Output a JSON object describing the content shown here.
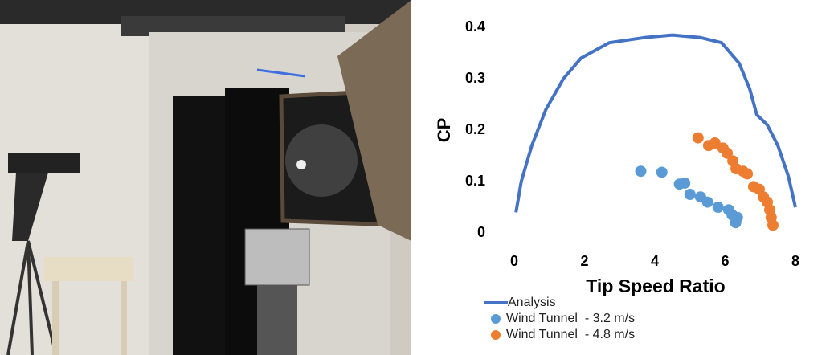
{
  "chart_data": {
    "type": "line",
    "x_label": "Tip Speed Ratio",
    "y_label": "CP",
    "xlim": [
      0,
      8
    ],
    "xticks": [
      0,
      2,
      4,
      6,
      8
    ],
    "ylim": [
      0,
      0.4
    ],
    "yticks": [
      0,
      0.1,
      0.2,
      0.3,
      0.4
    ],
    "grid": false,
    "legend": "bottom",
    "series": [
      {
        "name": "Analysis",
        "type": "line",
        "color": "#4472c4",
        "x": [
          0.05,
          0.2,
          0.5,
          0.9,
          1.4,
          1.9,
          2.7,
          3.7,
          4.5,
          5.3,
          5.9,
          6.4,
          6.7,
          6.9,
          7.2,
          7.5,
          7.8,
          8.0
        ],
        "values": [
          0.04,
          0.1,
          0.17,
          0.24,
          0.3,
          0.34,
          0.37,
          0.38,
          0.385,
          0.38,
          0.37,
          0.33,
          0.28,
          0.23,
          0.21,
          0.17,
          0.11,
          0.05
        ]
      },
      {
        "name": "Wind Tunnel  - 3.2 m/s",
        "type": "scatter",
        "color": "#5b9bd5",
        "x": [
          3.6,
          4.2,
          4.7,
          4.85,
          5.0,
          5.3,
          5.5,
          5.8,
          6.1,
          6.2,
          6.3,
          6.35
        ],
        "values": [
          0.12,
          0.118,
          0.095,
          0.097,
          0.075,
          0.07,
          0.06,
          0.05,
          0.045,
          0.035,
          0.02,
          0.03
        ]
      },
      {
        "name": "Wind Tunnel  - 4.8 m/s",
        "type": "scatter",
        "color": "#ed7d31",
        "x": [
          5.23,
          5.53,
          5.71,
          5.94,
          6.06,
          6.22,
          6.31,
          6.51,
          6.63,
          6.81,
          6.97,
          7.09,
          7.2,
          7.27,
          7.31,
          7.36
        ],
        "values": [
          0.185,
          0.17,
          0.175,
          0.165,
          0.155,
          0.14,
          0.125,
          0.12,
          0.115,
          0.09,
          0.085,
          0.07,
          0.06,
          0.045,
          0.03,
          0.015
        ]
      }
    ]
  }
}
